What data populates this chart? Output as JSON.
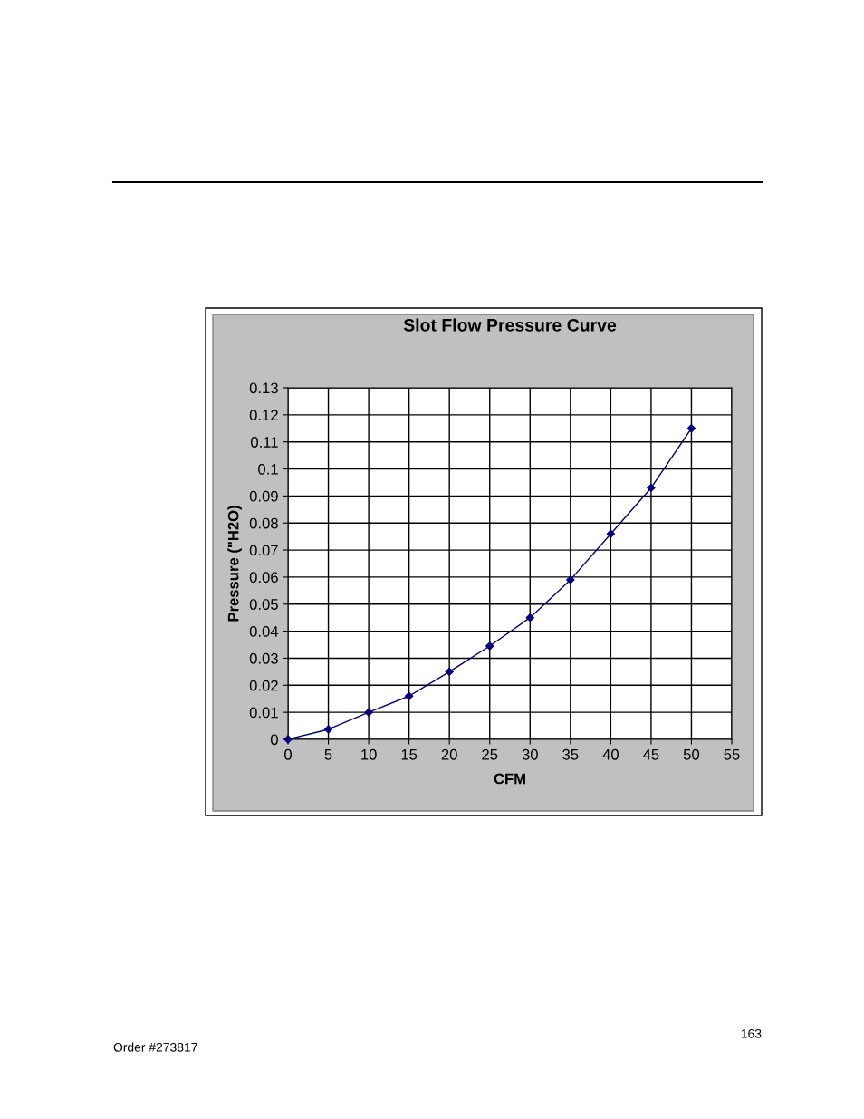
{
  "chart_data": {
    "type": "line",
    "title": "Slot Flow Pressure Curve",
    "xlabel": "CFM",
    "ylabel": "Pressure (\"H2O)",
    "x": [
      0,
      5,
      10,
      15,
      20,
      25,
      30,
      35,
      40,
      45,
      50
    ],
    "series": [
      {
        "color": "#000080",
        "values": [
          0,
          0.0037,
          0.01,
          0.016,
          0.025,
          0.0345,
          0.045,
          0.059,
          0.076,
          0.093,
          0.115
        ]
      }
    ],
    "xlim": [
      0,
      55
    ],
    "xticks": [
      0,
      5,
      10,
      15,
      20,
      25,
      30,
      35,
      40,
      45,
      50,
      55
    ],
    "ylim": [
      0,
      0.13
    ],
    "yticks": [
      0,
      0.01,
      0.02,
      0.03,
      0.04,
      0.05,
      0.06,
      0.07,
      0.08,
      0.09,
      0.1,
      0.11,
      0.12,
      0.13
    ],
    "grid": true,
    "marker": "diamond",
    "line_style": "solid",
    "annotations": [
      "163",
      "Order #273817"
    ]
  }
}
